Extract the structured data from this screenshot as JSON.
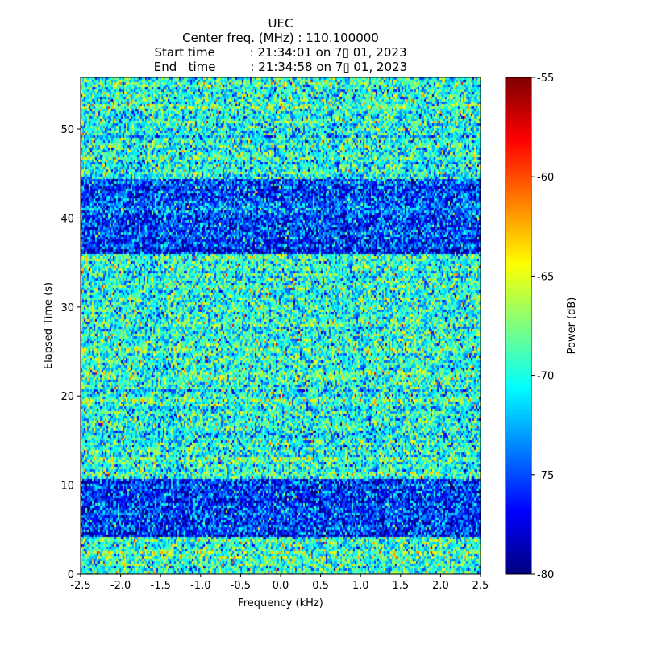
{
  "chart_data": {
    "type": "heatmap",
    "title_lines": [
      "UEC",
      "Center freq. (MHz) : 110.100000",
      "Start time         : 21:34:01 on 7▯ 01, 2023",
      "End   time         : 21:34:58 on 7▯ 01, 2023"
    ],
    "xlabel": "Frequency (kHz)",
    "ylabel": "Elapsed Time (s)",
    "xlim": [
      -2.5,
      2.5
    ],
    "ylim": [
      0,
      55.8
    ],
    "xticks": [
      "-2.5",
      "-2.0",
      "-1.5",
      "-1.0",
      "-0.5",
      "0.0",
      "0.5",
      "1.0",
      "1.5",
      "2.0",
      "2.5"
    ],
    "yticks": [
      "0",
      "10",
      "20",
      "30",
      "40",
      "50"
    ],
    "colorbar": {
      "label": "Power (dB)",
      "clim": [
        -80,
        -55
      ],
      "ticks": [
        "-80",
        "-75",
        "-70",
        "-65",
        "-60",
        "-55"
      ],
      "colormap": "jet"
    },
    "time_segments": [
      {
        "start": 0,
        "end": 4.2,
        "mean_power_db": -69.5
      },
      {
        "start": 4.2,
        "end": 10.7,
        "mean_power_db": -75.5
      },
      {
        "start": 10.7,
        "end": 36.0,
        "mean_power_db": -70
      },
      {
        "start": 36.0,
        "end": 44.4,
        "mean_power_db": -75.5
      },
      {
        "start": 44.4,
        "end": 55.8,
        "mean_power_db": -70
      }
    ],
    "noise_std_db": 3.2
  }
}
